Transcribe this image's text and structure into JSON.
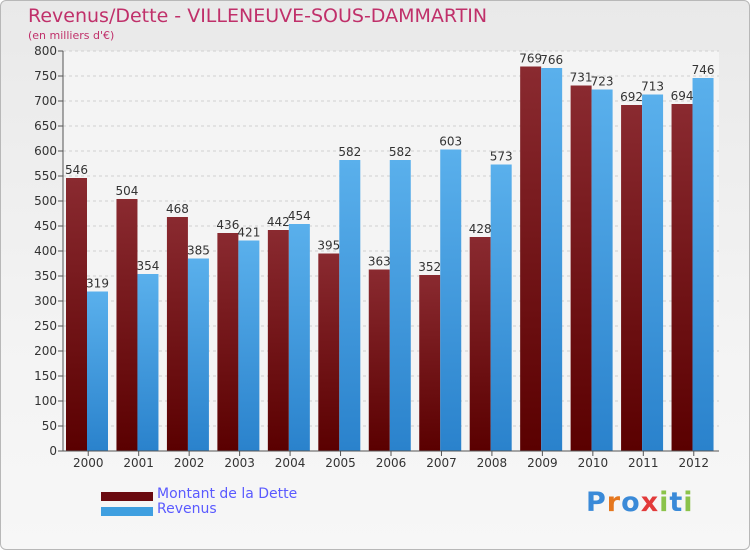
{
  "title": "Revenus/Dette - VILLENEUVE-SOUS-DAMMARTIN",
  "subtitle": "(en milliers d'€)",
  "logo": {
    "text": "Proxiti",
    "letters": [
      "P",
      "r",
      "o",
      "x",
      "i",
      "t",
      "i"
    ],
    "colors": [
      "#3a8ad8",
      "#e5771e",
      "#3a8ad8",
      "#e23a3a",
      "#8bc34a",
      "#3a8ad8",
      "#8bc34a"
    ]
  },
  "chart_data": {
    "type": "bar",
    "title": "Revenus/Dette - VILLENEUVE-SOUS-DAMMARTIN",
    "ylabel": "(en milliers d'€)",
    "xlabel": "",
    "ylim": [
      0,
      800
    ],
    "yticks": [
      0,
      50,
      100,
      150,
      200,
      250,
      300,
      350,
      400,
      450,
      500,
      550,
      600,
      650,
      700,
      750,
      800
    ],
    "grid": true,
    "legend_position": "bottom-left",
    "categories": [
      "2000",
      "2001",
      "2002",
      "2003",
      "2004",
      "2005",
      "2006",
      "2007",
      "2008",
      "2009",
      "2010",
      "2011",
      "2012"
    ],
    "series": [
      {
        "name": "Montant de la Dette",
        "color": "#7a0f15",
        "values": [
          546,
          504,
          468,
          436,
          442,
          395,
          363,
          352,
          428,
          769,
          731,
          692,
          694
        ]
      },
      {
        "name": "Revenus",
        "color": "#3f9fe0",
        "values": [
          319,
          354,
          385,
          421,
          454,
          582,
          582,
          603,
          573,
          766,
          723,
          713,
          746
        ]
      }
    ]
  }
}
